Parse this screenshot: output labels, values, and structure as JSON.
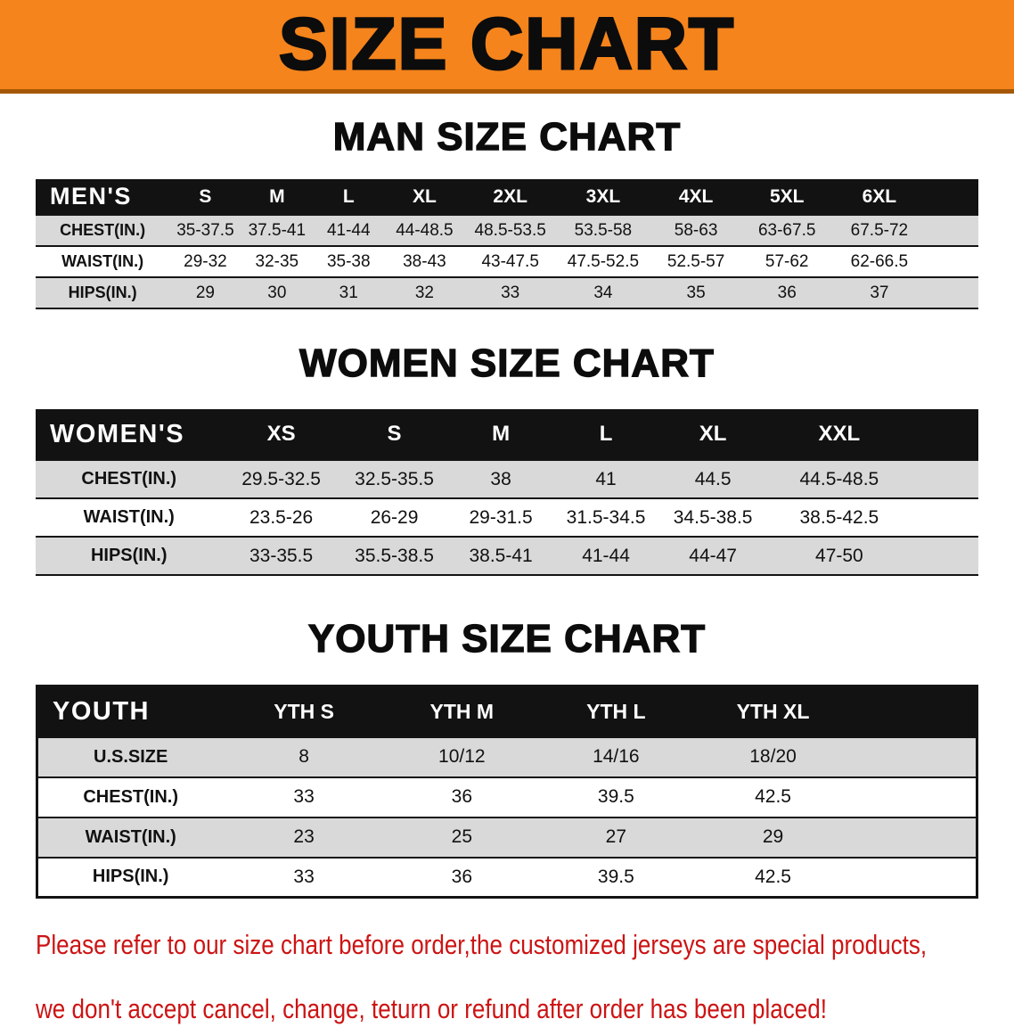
{
  "banner": {
    "title": "SIZE CHART",
    "bg_color": "#f5841c"
  },
  "sections": [
    {
      "heading": "MAN SIZE CHART",
      "table": {
        "header": [
          "MEN'S",
          "S",
          "M",
          "L",
          "XL",
          "2XL",
          "3XL",
          "4XL",
          "5XL",
          "6XL"
        ],
        "rows": [
          {
            "label": "CHEST(IN.)",
            "values": [
              "35-37.5",
              "37.5-41",
              "41-44",
              "44-48.5",
              "48.5-53.5",
              "53.5-58",
              "58-63",
              "63-67.5",
              "67.5-72"
            ]
          },
          {
            "label": "WAIST(IN.)",
            "values": [
              "29-32",
              "32-35",
              "35-38",
              "38-43",
              "43-47.5",
              "47.5-52.5",
              "52.5-57",
              "57-62",
              "62-66.5"
            ]
          },
          {
            "label": "HIPS(IN.)",
            "values": [
              "29",
              "30",
              "31",
              "32",
              "33",
              "34",
              "35",
              "36",
              "37"
            ]
          }
        ]
      }
    },
    {
      "heading": "WOMEN SIZE CHART",
      "table": {
        "header": [
          "WOMEN'S",
          "XS",
          "S",
          "M",
          "L",
          "XL",
          "XXL"
        ],
        "rows": [
          {
            "label": "CHEST(IN.)",
            "values": [
              "29.5-32.5",
              "32.5-35.5",
              "38",
              "41",
              "44.5",
              "44.5-48.5"
            ]
          },
          {
            "label": "WAIST(IN.)",
            "values": [
              "23.5-26",
              "26-29",
              "29-31.5",
              "31.5-34.5",
              "34.5-38.5",
              "38.5-42.5"
            ]
          },
          {
            "label": "HIPS(IN.)",
            "values": [
              "33-35.5",
              "35.5-38.5",
              "38.5-41",
              "41-44",
              "44-47",
              "47-50"
            ]
          }
        ]
      }
    },
    {
      "heading": "YOUTH SIZE CHART",
      "table": {
        "header": [
          "YOUTH",
          "YTH S",
          "YTH M",
          "YTH L",
          "YTH XL"
        ],
        "rows": [
          {
            "label": "U.S.SIZE",
            "values": [
              "8",
              "10/12",
              "14/16",
              "18/20"
            ]
          },
          {
            "label": "CHEST(IN.)",
            "values": [
              "33",
              "36",
              "39.5",
              "42.5"
            ]
          },
          {
            "label": "WAIST(IN.)",
            "values": [
              "23",
              "25",
              "27",
              "29"
            ]
          },
          {
            "label": "HIPS(IN.)",
            "values": [
              "33",
              "36",
              "39.5",
              "42.5"
            ]
          }
        ]
      }
    }
  ],
  "footer": {
    "line1": "Please refer to our size chart before order,the customized jerseys are special products,",
    "line2": "we don't accept cancel, change, teturn or refund after order has been placed!",
    "text_color": "#cc1414"
  }
}
